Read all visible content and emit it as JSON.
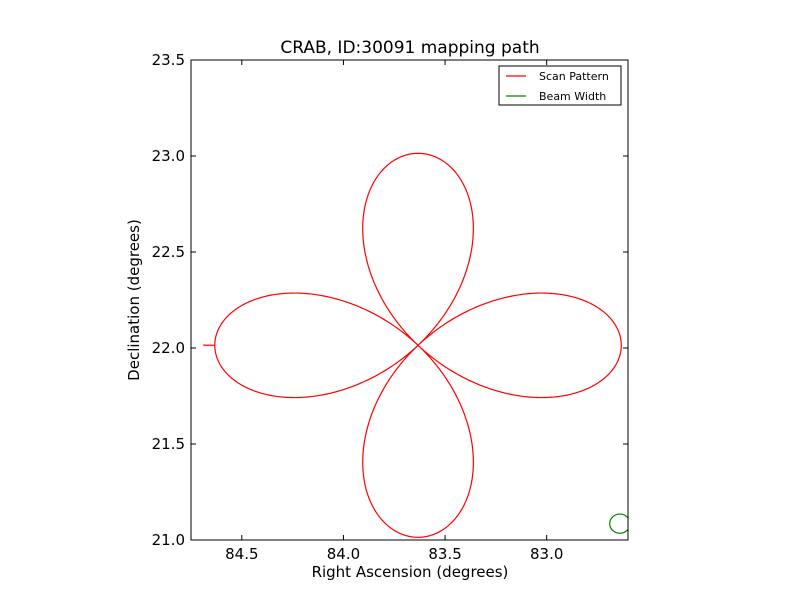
{
  "chart_data": {
    "type": "line",
    "title": "CRAB, ID:30091 mapping path",
    "xlabel": "Right Ascension (degrees)",
    "ylabel": "Declination (degrees)",
    "xlim": [
      84.75,
      82.6
    ],
    "ylim": [
      21.0,
      23.5
    ],
    "x_inverted": true,
    "xticks": [
      84.5,
      84.0,
      83.5,
      83.0
    ],
    "xtick_labels": [
      "84.5",
      "84.0",
      "83.5",
      "83.0"
    ],
    "yticks": [
      21.0,
      21.5,
      22.0,
      22.5,
      23.0,
      23.5
    ],
    "ytick_labels": [
      "21.0",
      "21.5",
      "22.0",
      "22.5",
      "23.0",
      "23.5"
    ],
    "grid": false,
    "legend_position": "top-right",
    "legend": [
      {
        "label": "Scan Pattern",
        "color": "#ff0000"
      },
      {
        "label": "Beam Width",
        "color": "#008000"
      }
    ],
    "series": [
      {
        "name": "Scan Pattern",
        "color": "#ff0000",
        "pattern": "four-petal rose",
        "center": [
          83.633,
          22.014
        ],
        "radius_deg": 1.0,
        "start": [
          84.69,
          22.015
        ]
      },
      {
        "name": "Beam Width",
        "color": "#008000",
        "shape": "circle",
        "center": [
          82.64,
          21.085
        ],
        "radius_deg": 0.05
      }
    ]
  }
}
